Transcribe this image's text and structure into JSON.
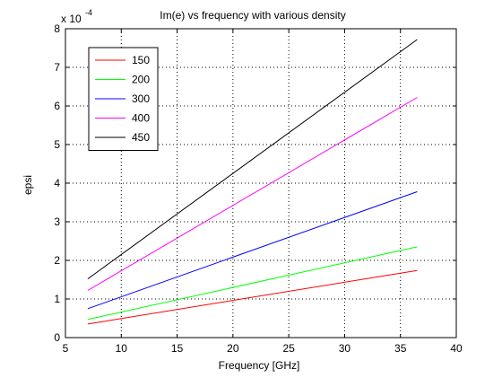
{
  "chart_data": {
    "type": "line",
    "title": "Im(e) vs frequency with various density",
    "xlabel": "Frequency [GHz]",
    "ylabel": "epsi",
    "y_exponent_base": "x 10",
    "y_exponent_power": "-4",
    "xlim": [
      5,
      40
    ],
    "ylim": [
      0,
      8
    ],
    "xticks": [
      5,
      10,
      15,
      20,
      25,
      30,
      35,
      40
    ],
    "yticks": [
      0,
      1,
      2,
      3,
      4,
      5,
      6,
      7,
      8
    ],
    "grid": true,
    "grid_style": "dotted",
    "legend_position": "top-left",
    "x": [
      7,
      36.5
    ],
    "series": [
      {
        "name": "150",
        "color": "#ff0000",
        "values": [
          0.35,
          1.74
        ]
      },
      {
        "name": "200",
        "color": "#00ff00",
        "values": [
          0.47,
          2.35
        ]
      },
      {
        "name": "300",
        "color": "#0000ff",
        "values": [
          0.75,
          3.78
        ]
      },
      {
        "name": "400",
        "color": "#ff00ff",
        "values": [
          1.22,
          6.22
        ]
      },
      {
        "name": "450",
        "color": "#000000",
        "values": [
          1.52,
          7.72
        ]
      }
    ]
  }
}
